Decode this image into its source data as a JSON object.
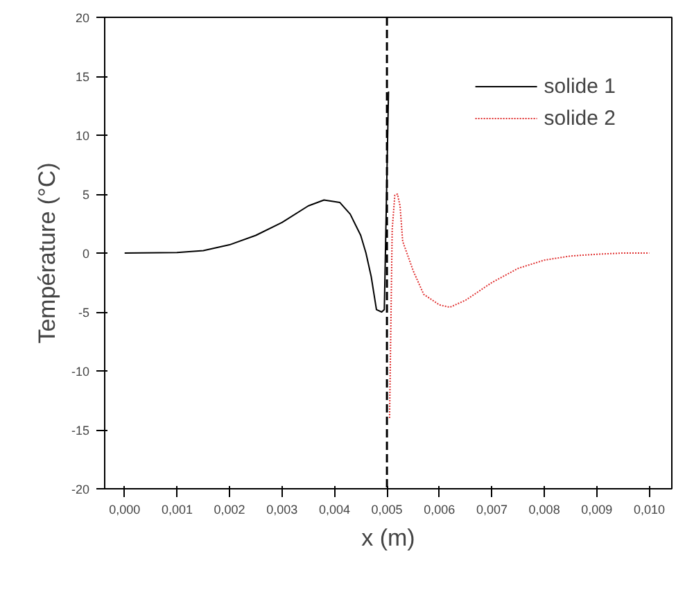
{
  "chart_data": {
    "type": "line",
    "xlabel": "x (m)",
    "ylabel": "Température (°C)",
    "xlim": [
      -0.00038,
      0.01043
    ],
    "ylim": [
      -20,
      20
    ],
    "xticks": [
      {
        "value": 0,
        "label": "0,000"
      },
      {
        "value": 0.001,
        "label": "0,001"
      },
      {
        "value": 0.002,
        "label": "0,002"
      },
      {
        "value": 0.003,
        "label": "0,003"
      },
      {
        "value": 0.004,
        "label": "0,004"
      },
      {
        "value": 0.005,
        "label": "0,005"
      },
      {
        "value": 0.006,
        "label": "0,006"
      },
      {
        "value": 0.007,
        "label": "0,007"
      },
      {
        "value": 0.008,
        "label": "0,008"
      },
      {
        "value": 0.009,
        "label": "0,009"
      },
      {
        "value": 0.01,
        "label": "0,010"
      }
    ],
    "yticks": [
      -20,
      -15,
      -10,
      -5,
      0,
      5,
      10,
      15,
      20
    ],
    "series": [
      {
        "name": "solide 1",
        "color": "#000000",
        "line_style": "solid",
        "x": [
          0,
          0.001,
          0.0015,
          0.002,
          0.0025,
          0.003,
          0.0035,
          0.0038,
          0.0041,
          0.0043,
          0.0045,
          0.0046,
          0.0047,
          0.0048,
          0.0049,
          0.00495,
          0.00503
        ],
        "values": [
          0,
          0.05,
          0.2,
          0.7,
          1.5,
          2.6,
          4.0,
          4.5,
          4.3,
          3.3,
          1.5,
          0,
          -2,
          -4.8,
          -5,
          -4.8,
          13.7
        ]
      },
      {
        "name": "solide 2",
        "color": "#e03030",
        "line_style": "dotted",
        "x": [
          0.00505,
          0.0051,
          0.00515,
          0.0052,
          0.00525,
          0.0053,
          0.0055,
          0.0057,
          0.006,
          0.0062,
          0.0065,
          0.007,
          0.0075,
          0.008,
          0.0085,
          0.009,
          0.0095,
          0.01
        ],
        "values": [
          -14,
          2,
          4.9,
          5.0,
          4,
          1,
          -1.5,
          -3.5,
          -4.4,
          -4.6,
          -4,
          -2.5,
          -1.3,
          -0.6,
          -0.25,
          -0.1,
          0,
          0
        ]
      }
    ],
    "ref_lines": [
      {
        "axis": "x",
        "value": 0.005,
        "color": "#000000",
        "line_style": "dashed"
      }
    ],
    "grid": false,
    "legend": "top right"
  }
}
